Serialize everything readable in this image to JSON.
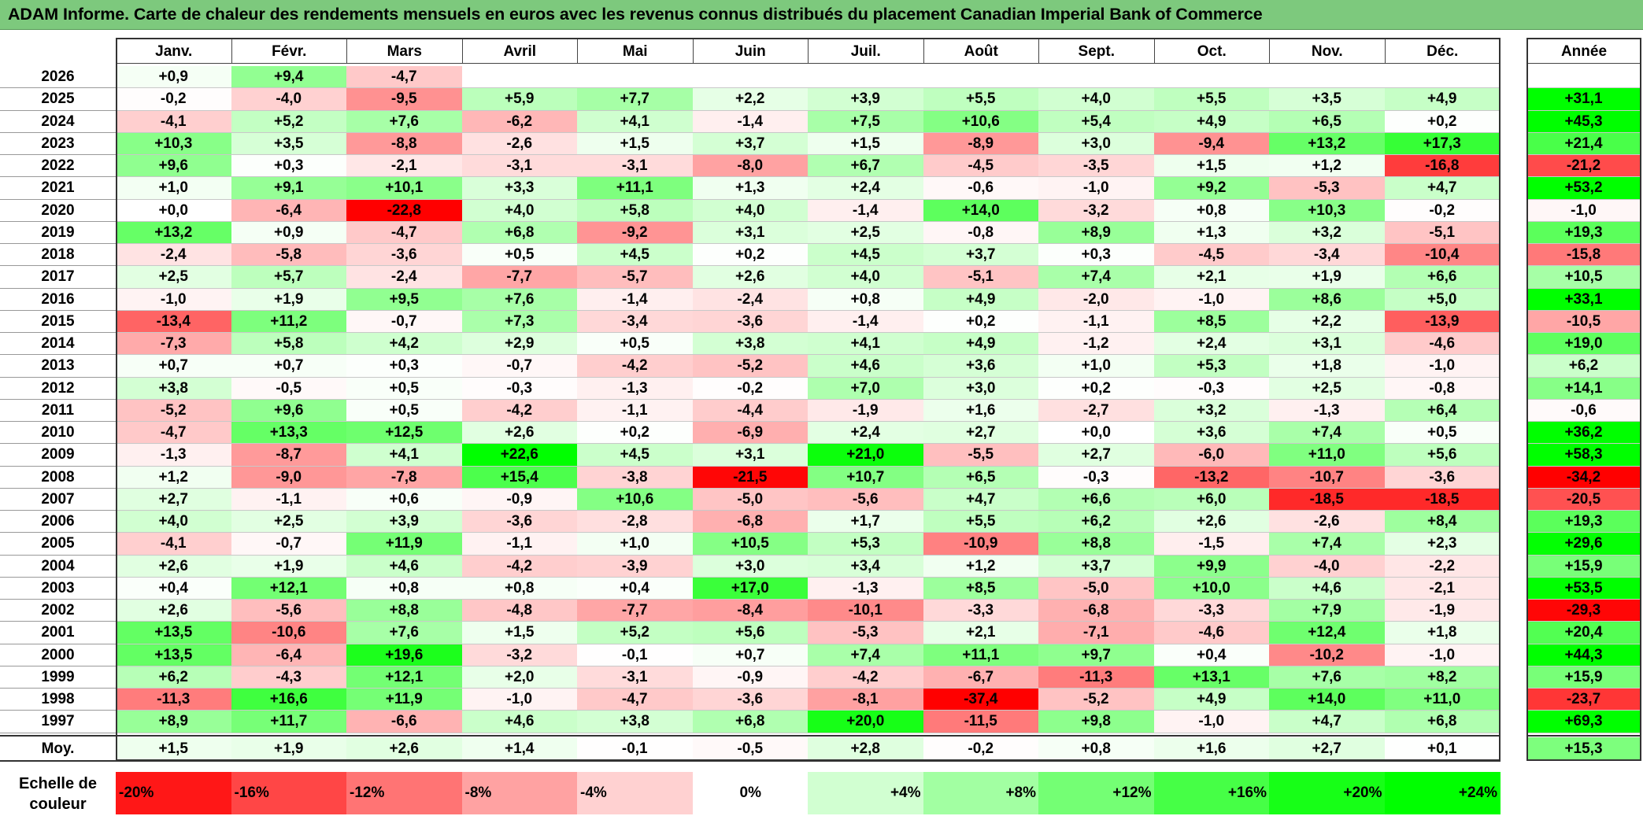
{
  "title": "ADAM Informe. Carte de chaleur des rendements mensuels en euros avec les revenus connus distribués du placement Canadian Imperial Bank of Commerce",
  "chart_data": {
    "type": "heatmap",
    "title": "ADAM Informe. Carte de chaleur des rendements mensuels en euros avec les revenus connus distribués du placement Canadian Imperial Bank of Commerce",
    "months": [
      "Janv.",
      "Févr.",
      "Mars",
      "Avril",
      "Mai",
      "Juin",
      "Juil.",
      "Août",
      "Sept.",
      "Oct.",
      "Nov.",
      "Déc."
    ],
    "year_header": "Année",
    "rows": [
      {
        "year": "2026",
        "values": [
          "+0,9",
          "+9,4",
          "-4,7",
          null,
          null,
          null,
          null,
          null,
          null,
          null,
          null,
          null
        ],
        "annual": null
      },
      {
        "year": "2025",
        "values": [
          "-0,2",
          "-4,0",
          "-9,5",
          "+5,9",
          "+7,7",
          "+2,2",
          "+3,9",
          "+5,5",
          "+4,0",
          "+5,5",
          "+3,5",
          "+4,9"
        ],
        "annual": "+31,1"
      },
      {
        "year": "2024",
        "values": [
          "-4,1",
          "+5,2",
          "+7,6",
          "-6,2",
          "+4,1",
          "-1,4",
          "+7,5",
          "+10,6",
          "+5,4",
          "+4,9",
          "+6,5",
          "+0,2"
        ],
        "annual": "+45,3"
      },
      {
        "year": "2023",
        "values": [
          "+10,3",
          "+3,5",
          "-8,8",
          "-2,6",
          "+1,5",
          "+3,7",
          "+1,5",
          "-8,9",
          "+3,0",
          "-9,4",
          "+13,2",
          "+17,3"
        ],
        "annual": "+21,4"
      },
      {
        "year": "2022",
        "values": [
          "+9,6",
          "+0,3",
          "-2,1",
          "-3,1",
          "-3,1",
          "-8,0",
          "+6,7",
          "-4,5",
          "-3,5",
          "+1,5",
          "+1,2",
          "-16,8"
        ],
        "annual": "-21,2"
      },
      {
        "year": "2021",
        "values": [
          "+1,0",
          "+9,1",
          "+10,1",
          "+3,3",
          "+11,1",
          "+1,3",
          "+2,4",
          "-0,6",
          "-1,0",
          "+9,2",
          "-5,3",
          "+4,7"
        ],
        "annual": "+53,2"
      },
      {
        "year": "2020",
        "values": [
          "+0,0",
          "-6,4",
          "-22,8",
          "+4,0",
          "+5,8",
          "+4,0",
          "-1,4",
          "+14,0",
          "-3,2",
          "+0,8",
          "+10,3",
          "-0,2"
        ],
        "annual": "-1,0"
      },
      {
        "year": "2019",
        "values": [
          "+13,2",
          "+0,9",
          "-4,7",
          "+6,8",
          "-9,2",
          "+3,1",
          "+2,5",
          "-0,8",
          "+8,9",
          "+1,3",
          "+3,2",
          "-5,1"
        ],
        "annual": "+19,3"
      },
      {
        "year": "2018",
        "values": [
          "-2,4",
          "-5,8",
          "-3,6",
          "+0,5",
          "+4,5",
          "+0,2",
          "+4,5",
          "+3,7",
          "+0,3",
          "-4,5",
          "-3,4",
          "-10,4"
        ],
        "annual": "-15,8"
      },
      {
        "year": "2017",
        "values": [
          "+2,5",
          "+5,7",
          "-2,4",
          "-7,7",
          "-5,7",
          "+2,6",
          "+4,0",
          "-5,1",
          "+7,4",
          "+2,1",
          "+1,9",
          "+6,6"
        ],
        "annual": "+10,5"
      },
      {
        "year": "2016",
        "values": [
          "-1,0",
          "+1,9",
          "+9,5",
          "+7,6",
          "-1,4",
          "-2,4",
          "+0,8",
          "+4,9",
          "-2,0",
          "-1,0",
          "+8,6",
          "+5,0"
        ],
        "annual": "+33,1"
      },
      {
        "year": "2015",
        "values": [
          "-13,4",
          "+11,2",
          "-0,7",
          "+7,3",
          "-3,4",
          "-3,6",
          "-1,4",
          "+0,2",
          "-1,1",
          "+8,5",
          "+2,2",
          "-13,9"
        ],
        "annual": "-10,5"
      },
      {
        "year": "2014",
        "values": [
          "-7,3",
          "+5,8",
          "+4,2",
          "+2,9",
          "+0,5",
          "+3,8",
          "+4,1",
          "+4,9",
          "-1,2",
          "+2,4",
          "+3,1",
          "-4,6"
        ],
        "annual": "+19,0"
      },
      {
        "year": "2013",
        "values": [
          "+0,7",
          "+0,7",
          "+0,3",
          "-0,7",
          "-4,2",
          "-5,2",
          "+4,6",
          "+3,6",
          "+1,0",
          "+5,3",
          "+1,8",
          "-1,0"
        ],
        "annual": "+6,2"
      },
      {
        "year": "2012",
        "values": [
          "+3,8",
          "-0,5",
          "+0,5",
          "-0,3",
          "-1,3",
          "-0,2",
          "+7,0",
          "+3,0",
          "+0,2",
          "-0,3",
          "+2,5",
          "-0,8"
        ],
        "annual": "+14,1"
      },
      {
        "year": "2011",
        "values": [
          "-5,2",
          "+9,6",
          "+0,5",
          "-4,2",
          "-1,1",
          "-4,4",
          "-1,9",
          "+1,6",
          "-2,7",
          "+3,2",
          "-1,3",
          "+6,4"
        ],
        "annual": "-0,6"
      },
      {
        "year": "2010",
        "values": [
          "-4,7",
          "+13,3",
          "+12,5",
          "+2,6",
          "+0,2",
          "-6,9",
          "+2,4",
          "+2,7",
          "+0,0",
          "+3,6",
          "+7,4",
          "+0,5"
        ],
        "annual": "+36,2"
      },
      {
        "year": "2009",
        "values": [
          "-1,3",
          "-8,7",
          "+4,1",
          "+22,6",
          "+4,5",
          "+3,1",
          "+21,0",
          "-5,5",
          "+2,7",
          "-6,0",
          "+11,0",
          "+5,6"
        ],
        "annual": "+58,3"
      },
      {
        "year": "2008",
        "values": [
          "+1,2",
          "-9,0",
          "-7,8",
          "+15,4",
          "-3,8",
          "-21,5",
          "+10,7",
          "+6,5",
          "-0,3",
          "-13,2",
          "-10,7",
          "-3,6"
        ],
        "annual": "-34,2"
      },
      {
        "year": "2007",
        "values": [
          "+2,7",
          "-1,1",
          "+0,6",
          "-0,9",
          "+10,6",
          "-5,0",
          "-5,6",
          "+4,7",
          "+6,6",
          "+6,0",
          "-18,5",
          "-18,5"
        ],
        "annual": "-20,5"
      },
      {
        "year": "2006",
        "values": [
          "+4,0",
          "+2,5",
          "+3,9",
          "-3,6",
          "-2,8",
          "-6,8",
          "+1,7",
          "+5,5",
          "+6,2",
          "+2,6",
          "-2,6",
          "+8,4"
        ],
        "annual": "+19,3"
      },
      {
        "year": "2005",
        "values": [
          "-4,1",
          "-0,7",
          "+11,9",
          "-1,1",
          "+1,0",
          "+10,5",
          "+5,3",
          "-10,9",
          "+8,8",
          "-1,5",
          "+7,4",
          "+2,3"
        ],
        "annual": "+29,6"
      },
      {
        "year": "2004",
        "values": [
          "+2,6",
          "+1,9",
          "+4,6",
          "-4,2",
          "-3,9",
          "+3,0",
          "+3,4",
          "+1,2",
          "+3,7",
          "+9,9",
          "-4,0",
          "-2,2"
        ],
        "annual": "+15,9"
      },
      {
        "year": "2003",
        "values": [
          "+0,4",
          "+12,1",
          "+0,8",
          "+0,8",
          "+0,4",
          "+17,0",
          "-1,3",
          "+8,5",
          "-5,0",
          "+10,0",
          "+4,6",
          "-2,1"
        ],
        "annual": "+53,5"
      },
      {
        "year": "2002",
        "values": [
          "+2,6",
          "-5,6",
          "+8,8",
          "-4,8",
          "-7,7",
          "-8,4",
          "-10,1",
          "-3,3",
          "-6,8",
          "-3,3",
          "+7,9",
          "-1,9"
        ],
        "annual": "-29,3"
      },
      {
        "year": "2001",
        "values": [
          "+13,5",
          "-10,6",
          "+7,6",
          "+1,5",
          "+5,2",
          "+5,6",
          "-5,3",
          "+2,1",
          "-7,1",
          "-4,6",
          "+12,4",
          "+1,8"
        ],
        "annual": "+20,4"
      },
      {
        "year": "2000",
        "values": [
          "+13,5",
          "-6,4",
          "+19,6",
          "-3,2",
          "-0,1",
          "+0,7",
          "+7,4",
          "+11,1",
          "+9,7",
          "+0,4",
          "-10,2",
          "-1,0"
        ],
        "annual": "+44,3"
      },
      {
        "year": "1999",
        "values": [
          "+6,2",
          "-4,3",
          "+12,1",
          "+2,0",
          "-3,1",
          "-0,9",
          "-4,2",
          "-6,7",
          "-11,3",
          "+13,1",
          "+7,6",
          "+8,2"
        ],
        "annual": "+15,9"
      },
      {
        "year": "1998",
        "values": [
          "-11,3",
          "+16,6",
          "+11,9",
          "-1,0",
          "-4,7",
          "-3,6",
          "-8,1",
          "-37,4",
          "-5,2",
          "+4,9",
          "+14,0",
          "+11,0"
        ],
        "annual": "-23,7"
      },
      {
        "year": "1997",
        "values": [
          "+8,9",
          "+11,7",
          "-6,6",
          "+4,6",
          "+3,8",
          "+6,8",
          "+20,0",
          "-11,5",
          "+9,8",
          "-1,0",
          "+4,7",
          "+6,8"
        ],
        "annual": "+69,3"
      }
    ],
    "average": {
      "label": "Moy.",
      "values": [
        "+1,5",
        "+1,9",
        "+2,6",
        "+1,4",
        "-0,1",
        "-0,5",
        "+2,8",
        "-0,2",
        "+0,8",
        "+1,6",
        "+2,7",
        "+0,1"
      ],
      "annual": "+15,3"
    },
    "color_scale": {
      "label": "Echelle de couleur",
      "stops": [
        "-20%",
        "-16%",
        "-12%",
        "-8%",
        "-4%",
        "0%",
        "+4%",
        "+8%",
        "+12%",
        "+16%",
        "+20%",
        "+24%"
      ]
    },
    "colors": {
      "negative": "#ff0000",
      "neutral": "#ffffff",
      "positive": "#00ff00",
      "title_bar": "#7dc97d"
    }
  }
}
